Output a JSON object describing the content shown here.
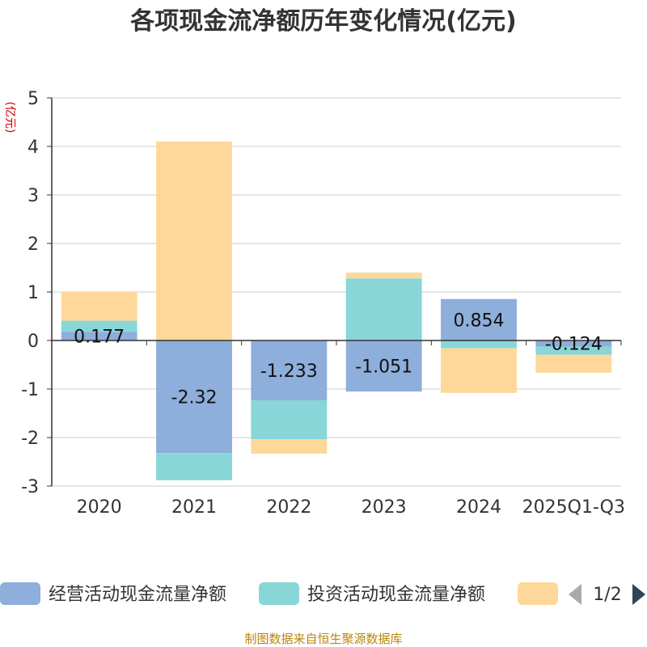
{
  "chart_data": {
    "type": "bar",
    "stacked": true,
    "title": "各项现金流净额历年变化情况(亿元)",
    "ylabel": "(亿元)",
    "categories": [
      "2020",
      "2021",
      "2022",
      "2023",
      "2024",
      "2025Q1-Q3"
    ],
    "ylim": [
      -3,
      5
    ],
    "yticks": [
      5,
      4,
      3,
      2,
      1,
      0,
      -1,
      -2,
      -3
    ],
    "grid": true,
    "series": [
      {
        "name": "经营活动现金流量净额",
        "color": "#8eaedb",
        "values": [
          0.177,
          -2.32,
          -1.233,
          -1.051,
          0.854,
          -0.124
        ]
      },
      {
        "name": "投资活动现金流量净额",
        "color": "#88d6d8",
        "values": [
          0.23,
          -0.56,
          -0.8,
          1.28,
          -0.16,
          -0.17
        ]
      },
      {
        "name": "",
        "color": "#fdd89a",
        "values": [
          0.6,
          4.1,
          -0.3,
          0.12,
          -0.92,
          -0.37
        ]
      }
    ],
    "data_labels": [
      "0.177",
      "-2.32",
      "-1.233",
      "-1.051",
      "0.854",
      "-0.124"
    ],
    "legend": {
      "position": "bottom",
      "page": "1/2"
    }
  },
  "footer": {
    "source": "制图数据来自恒生聚源数据库"
  }
}
